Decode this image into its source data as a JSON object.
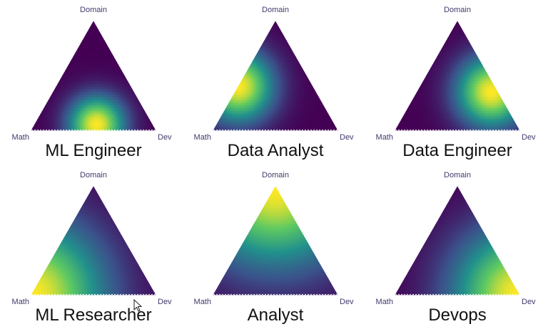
{
  "chart_data": [
    {
      "type": "heatmap",
      "subtype": "ternary",
      "title": "ML Engineer",
      "vertices": {
        "top": "Domain",
        "left": "Math",
        "right": "Dev"
      },
      "peak": {
        "Math": 0.45,
        "Dev": 0.5,
        "Domain": 0.05
      },
      "spread": 0.16
    },
    {
      "type": "heatmap",
      "subtype": "ternary",
      "title": "Data Analyst",
      "vertices": {
        "top": "Domain",
        "left": "Math",
        "right": "Dev"
      },
      "peak": {
        "Math": 0.6,
        "Dev": 0.0,
        "Domain": 0.4
      },
      "spread": 0.2
    },
    {
      "type": "heatmap",
      "subtype": "ternary",
      "title": "Data Engineer",
      "vertices": {
        "top": "Domain",
        "left": "Math",
        "right": "Dev"
      },
      "peak": {
        "Math": 0.05,
        "Dev": 0.6,
        "Domain": 0.35
      },
      "spread": 0.2
    },
    {
      "type": "heatmap",
      "subtype": "ternary",
      "title": "ML Researcher",
      "vertices": {
        "top": "Domain",
        "left": "Math",
        "right": "Dev"
      },
      "peak": {
        "Math": 1.0,
        "Dev": 0.0,
        "Domain": 0.0
      },
      "spread": 0.42
    },
    {
      "type": "heatmap",
      "subtype": "ternary",
      "title": "Analyst",
      "vertices": {
        "top": "Domain",
        "left": "Math",
        "right": "Dev"
      },
      "peak": {
        "Math": 0.0,
        "Dev": 0.0,
        "Domain": 1.0
      },
      "spread": 0.45
    },
    {
      "type": "heatmap",
      "subtype": "ternary",
      "title": "Devops",
      "vertices": {
        "top": "Domain",
        "left": "Math",
        "right": "Dev"
      },
      "peak": {
        "Math": 0.0,
        "Dev": 1.0,
        "Domain": 0.0
      },
      "spread": 0.38
    }
  ],
  "colormap": [
    "#440154",
    "#3b528b",
    "#21918c",
    "#5ec962",
    "#fde725"
  ]
}
